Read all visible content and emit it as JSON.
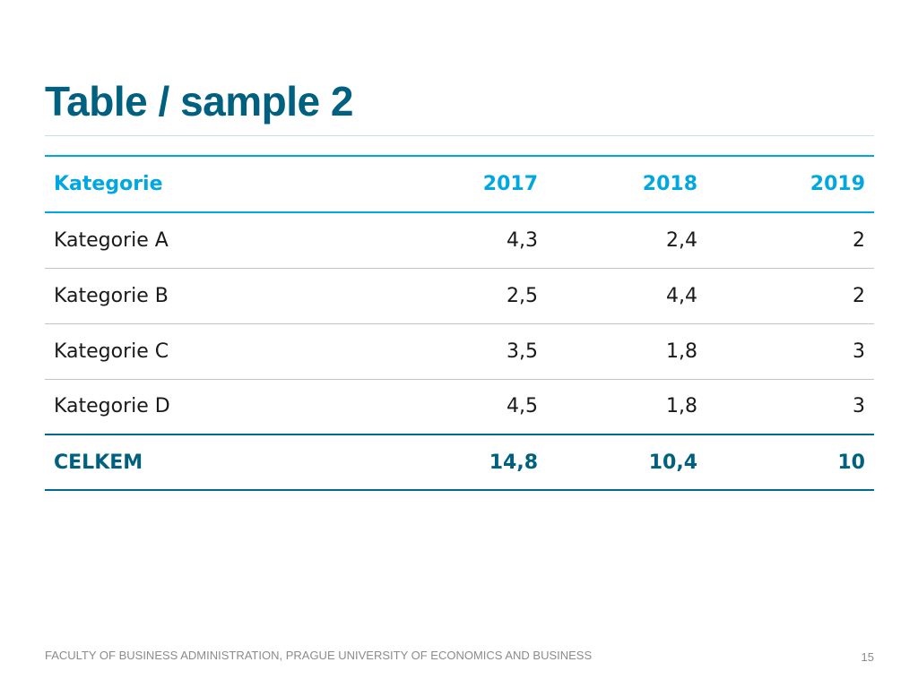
{
  "colors": {
    "title": "#00607f",
    "header_text": "#00a7e1",
    "header_rule": "#00a7e1",
    "body_text": "#1a1a1a",
    "row_rule": "#c4c4c4",
    "total_text": "#00607f",
    "total_rule": "#006b8f",
    "footer_text": "#8c8c8c"
  },
  "slide": {
    "title": "Table / sample 2"
  },
  "table": {
    "header": {
      "label": "Kategorie",
      "years": [
        "2017",
        "2018",
        "2019"
      ]
    },
    "rows": [
      {
        "label": "Kategorie A",
        "values": [
          "4,3",
          "2,4",
          "2"
        ]
      },
      {
        "label": "Kategorie B",
        "values": [
          "2,5",
          "4,4",
          "2"
        ]
      },
      {
        "label": "Kategorie C",
        "values": [
          "3,5",
          "1,8",
          "3"
        ]
      },
      {
        "label": "Kategorie D",
        "values": [
          "4,5",
          "1,8",
          "3"
        ]
      }
    ],
    "total": {
      "label": "CELKEM",
      "values": [
        "14,8",
        "10,4",
        "10"
      ]
    }
  },
  "footer": {
    "text": "FACULTY OF BUSINESS ADMINISTRATION, PRAGUE UNIVERSITY OF ECONOMICS AND BUSINESS",
    "page_number": "15"
  }
}
